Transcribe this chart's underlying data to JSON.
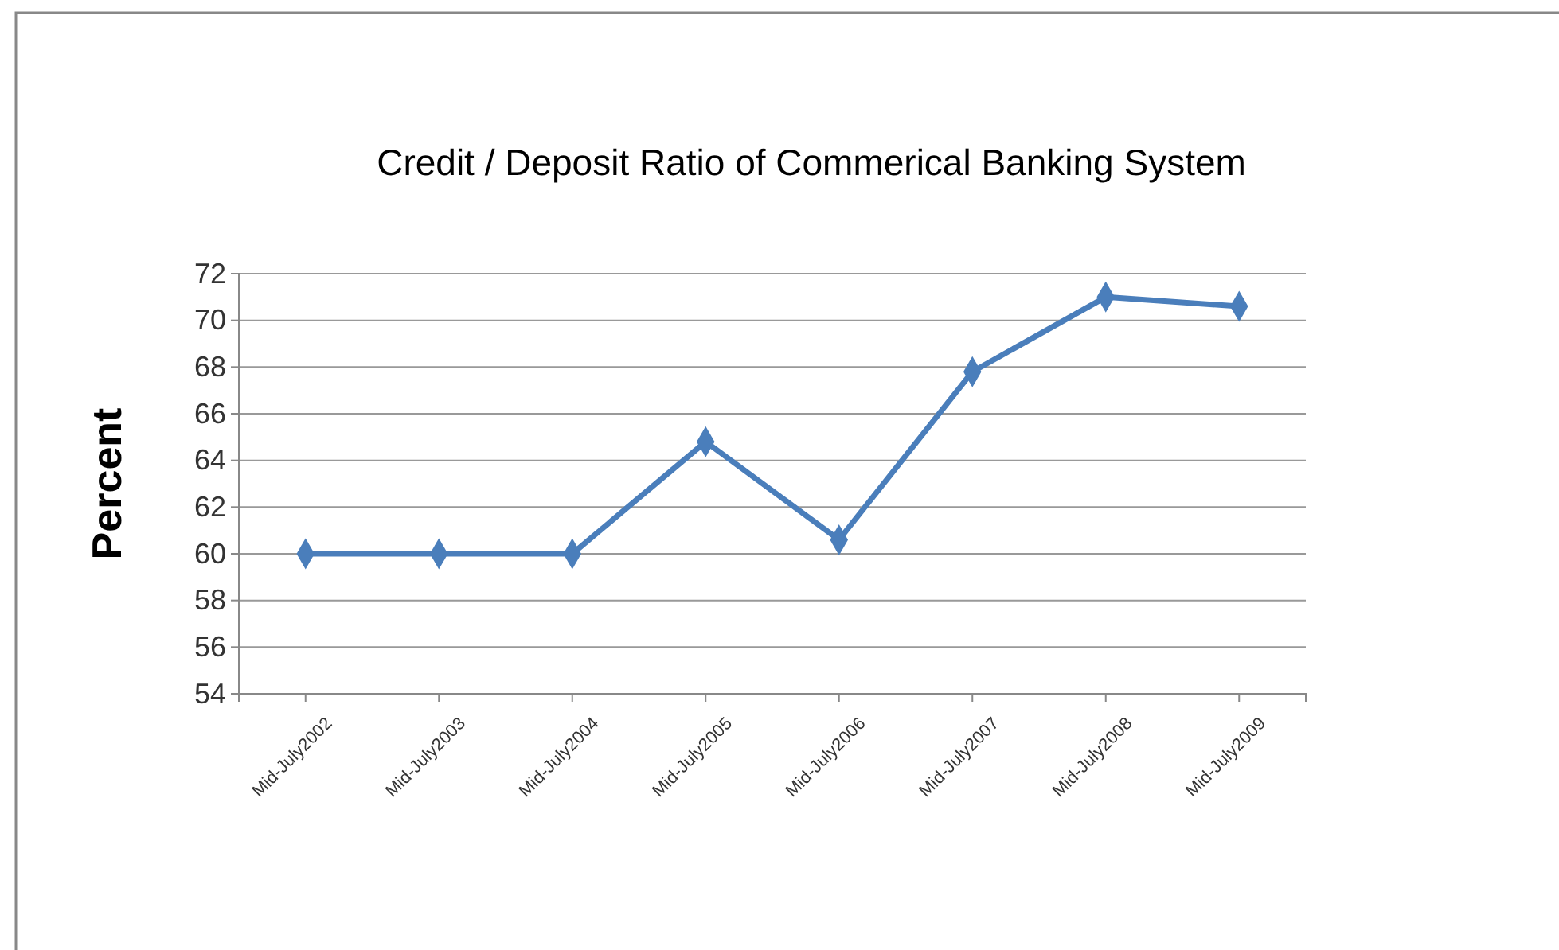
{
  "chart_data": {
    "type": "line",
    "title": "Credit / Deposit Ratio of Commerical Banking System",
    "ylabel": "Percent",
    "categories": [
      "Mid-July2002",
      "Mid-July2003",
      "Mid-July2004",
      "Mid-July2005",
      "Mid-July2006",
      "Mid-July2007",
      "Mid-July2008",
      "Mid-July2009"
    ],
    "series": [
      {
        "color": "#4a7ebb",
        "values": [
          60,
          60,
          60,
          64.8,
          60.6,
          67.8,
          71.0,
          70.6
        ]
      }
    ],
    "ylim": [
      54,
      72
    ],
    "yticks": [
      54,
      56,
      58,
      60,
      62,
      64,
      66,
      68,
      70,
      72
    ],
    "grid": "y",
    "marker": "diamond",
    "line_style": "solid"
  }
}
